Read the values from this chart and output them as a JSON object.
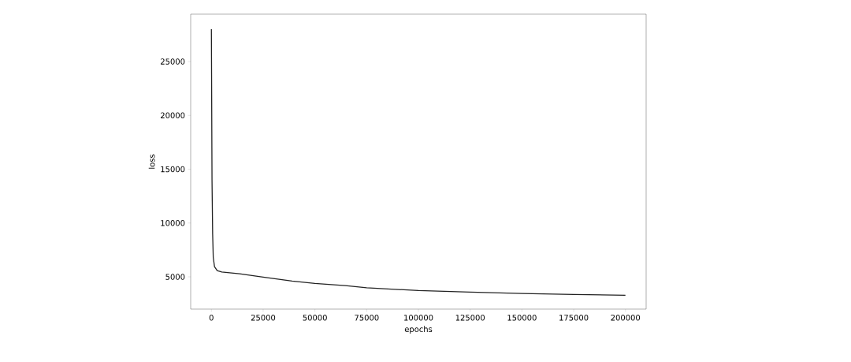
{
  "chart_data": {
    "type": "line",
    "xlabel": "epochs",
    "ylabel": "loss",
    "x": [
      0,
      300,
      600,
      900,
      1500,
      2800,
      5000,
      13600,
      25000,
      39000,
      50000,
      64700,
      75000,
      100000,
      125000,
      150000,
      175000,
      200000
    ],
    "series": [
      {
        "color": "#222222",
        "values": [
          28000,
          14000,
          9000,
          6800,
          5950,
          5580,
          5450,
          5290,
          4980,
          4610,
          4390,
          4180,
          3980,
          3730,
          3590,
          3460,
          3370,
          3290
        ]
      }
    ],
    "xlim": [
      -10000,
      210000
    ],
    "xticks": [
      0,
      25000,
      50000,
      75000,
      100000,
      125000,
      150000,
      175000,
      200000
    ],
    "ylim": [
      2000,
      29400
    ],
    "yticks": [
      5000,
      10000,
      15000,
      20000,
      25000
    ],
    "grid": false,
    "marker": "none",
    "line_style": "solid"
  }
}
